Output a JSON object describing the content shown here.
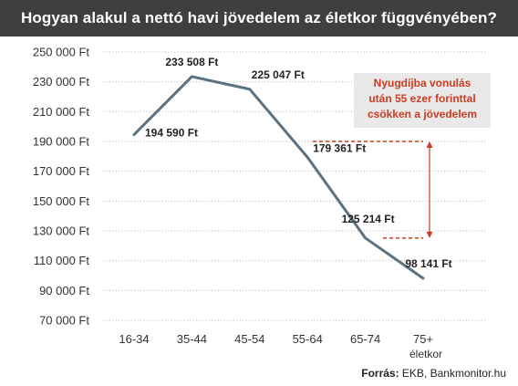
{
  "title": "Hogyan alakul a nettó havi jövedelem az életkor függvényében?",
  "chart_data": {
    "type": "line",
    "categories": [
      "16-34",
      "35-44",
      "45-54",
      "55-64",
      "65-74",
      "75+"
    ],
    "xlabel": "életkor",
    "ylabel": "",
    "tick_suffix": " Ft",
    "yticks": [
      "250 000 Ft",
      "230 000 Ft",
      "210 000 Ft",
      "190 000 Ft",
      "170 000 Ft",
      "150 000 Ft",
      "130 000 Ft",
      "110 000 Ft",
      "90 000 Ft",
      "70 000 Ft"
    ],
    "ylim": [
      70000,
      250000
    ],
    "ytick_step": 20000,
    "grid": "horizontal-dotted",
    "series": [
      {
        "values": [
          194590,
          233508,
          225047,
          179361,
          125214,
          98141
        ],
        "labels": [
          "194 590 Ft",
          "233 508 Ft",
          "225 047 Ft",
          "179 361 Ft",
          "125 214 Ft",
          "98 141 Ft"
        ],
        "color": "#5b7282"
      }
    ],
    "annotation": {
      "text": [
        "Nyugdíjba vonulás",
        "után 55 ezer forinttal",
        "csökken  a jövedelem"
      ],
      "from_value": 190000,
      "to_value": 125214,
      "color": "#cc3b22",
      "box_color": "#e9e9e9"
    }
  },
  "source": {
    "label": "Forrás:",
    "text": " EKB, Bankmonitor.hu"
  }
}
